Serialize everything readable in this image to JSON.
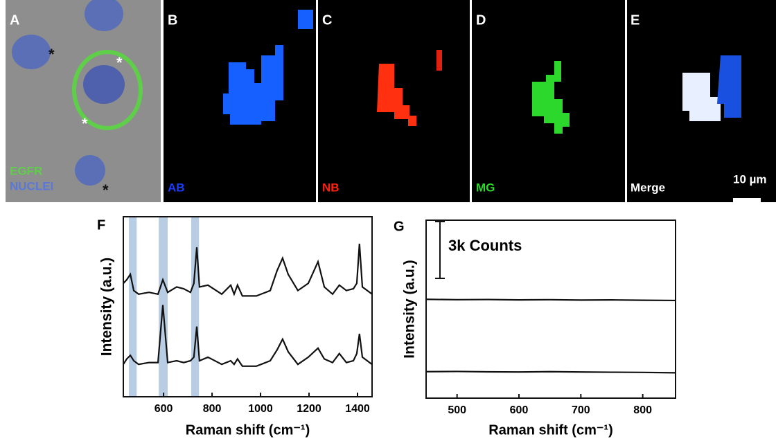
{
  "panels": [
    {
      "letter": "A",
      "labels": [
        "EGFR",
        "NUCLEI"
      ],
      "asterisks": [
        "*",
        "*",
        "*",
        "*"
      ]
    },
    {
      "letter": "B",
      "label": "AB"
    },
    {
      "letter": "C",
      "label": "NB"
    },
    {
      "letter": "D",
      "label": "MG"
    },
    {
      "letter": "E",
      "label": "Merge",
      "scale_bar": "10 µm"
    }
  ],
  "chart_data": [
    {
      "type": "line",
      "panel": "F",
      "xlabel": "Raman shift (cm⁻¹)",
      "ylabel": "Intensity (a.u.)",
      "xlim": [
        434,
        1460
      ],
      "xticks": [
        600,
        800,
        1000,
        1200,
        1400
      ],
      "ylim": [
        0,
        10
      ],
      "highlights": [
        [
          457,
          489
        ],
        [
          580,
          617
        ],
        [
          714,
          746
        ]
      ],
      "x": [
        434,
        448,
        463,
        477,
        497,
        540,
        577,
        597,
        617,
        654,
        683,
        711,
        725,
        737,
        748,
        783,
        840,
        877,
        891,
        905,
        925,
        983,
        1040,
        1068,
        1091,
        1114,
        1154,
        1197,
        1237,
        1263,
        1297,
        1325,
        1354,
        1383,
        1397,
        1408,
        1420,
        1460
      ],
      "series": [
        {
          "color": "#111111",
          "values": [
            6.3,
            6.5,
            6.8,
            5.9,
            5.7,
            5.8,
            5.7,
            6.5,
            5.8,
            6.1,
            6.0,
            5.8,
            6.3,
            8.3,
            6.1,
            6.2,
            5.7,
            6.2,
            5.7,
            6.2,
            5.6,
            5.6,
            5.9,
            7.0,
            7.7,
            6.8,
            5.9,
            6.3,
            7.5,
            6.1,
            5.7,
            6.2,
            5.9,
            6.0,
            6.3,
            8.5,
            6.1,
            5.7
          ]
        },
        {
          "color": "#111111",
          "values": [
            1.8,
            2.1,
            2.3,
            2.0,
            1.8,
            1.9,
            1.9,
            5.1,
            1.9,
            2.0,
            1.9,
            2.0,
            2.2,
            3.9,
            2.0,
            2.2,
            1.8,
            2.0,
            1.8,
            2.1,
            1.7,
            1.7,
            2.0,
            2.6,
            3.2,
            2.5,
            1.8,
            2.2,
            2.7,
            2.1,
            1.9,
            2.4,
            1.9,
            2.0,
            2.4,
            3.5,
            2.2,
            1.8
          ]
        }
      ]
    },
    {
      "type": "line",
      "panel": "G",
      "xlabel": "Raman shift (cm⁻¹)",
      "ylabel": "Intensity (a.u.)",
      "xlim": [
        450,
        853
      ],
      "xticks": [
        500,
        600,
        700,
        800
      ],
      "ylim": [
        0,
        9400
      ],
      "scale_bar": {
        "value": 3000,
        "label": "3k Counts"
      },
      "x": [
        450,
        500,
        550,
        600,
        650,
        700,
        750,
        800,
        853
      ],
      "series": [
        {
          "color": "#111111",
          "values": [
            5220,
            5200,
            5210,
            5190,
            5200,
            5180,
            5190,
            5170,
            5160
          ]
        },
        {
          "color": "#111111",
          "values": [
            1400,
            1410,
            1390,
            1380,
            1400,
            1380,
            1370,
            1360,
            1340
          ]
        }
      ]
    }
  ]
}
